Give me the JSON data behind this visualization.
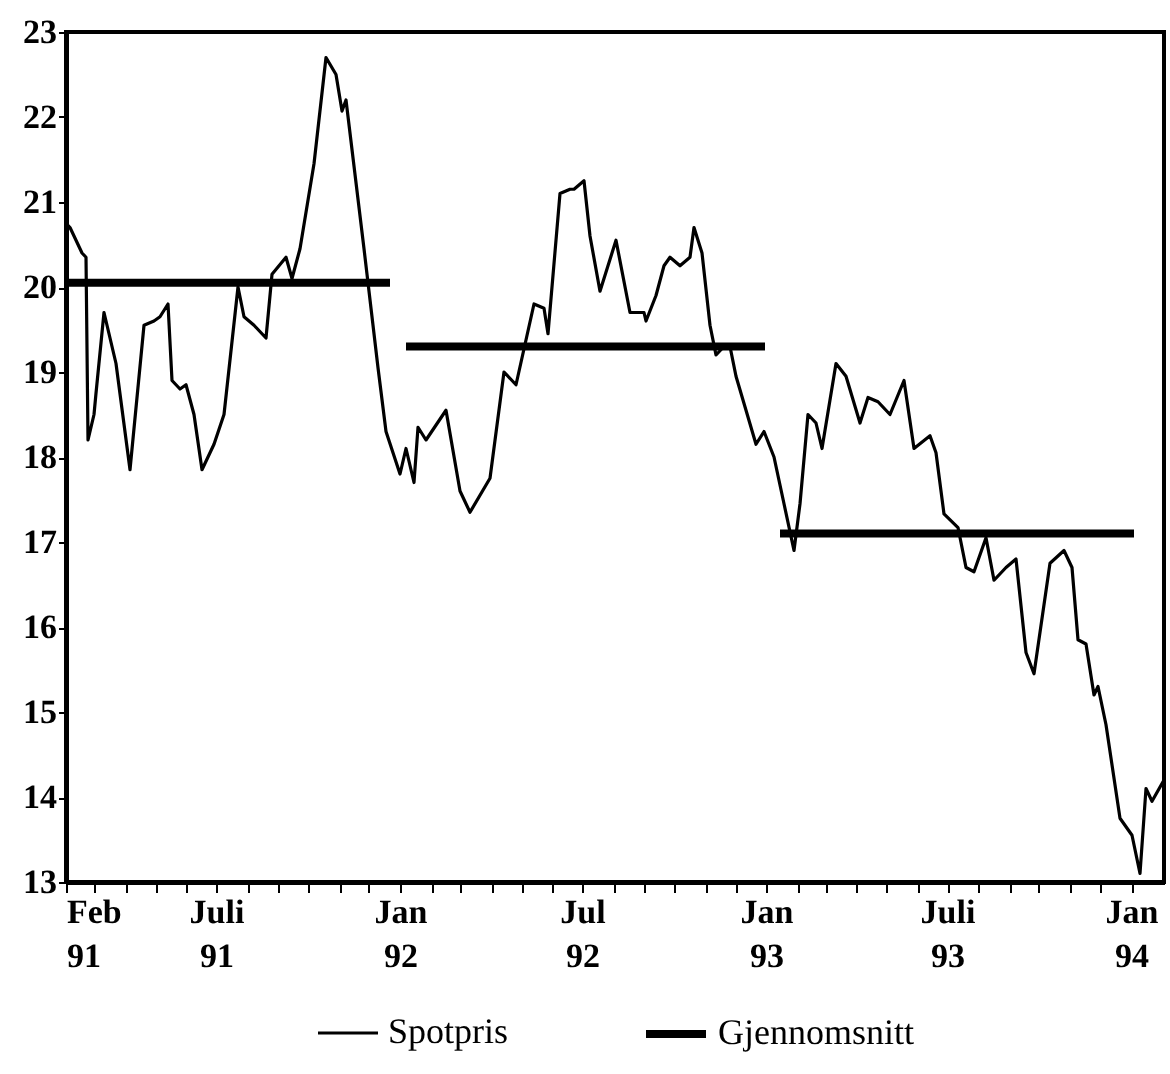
{
  "chart_data": {
    "type": "line",
    "legend": "bottom",
    "xlim": [
      "1991-02-01",
      "1994-02-03"
    ],
    "ylim": [
      13,
      23
    ],
    "yticks": [
      13,
      14,
      15,
      16,
      17,
      18,
      19,
      20,
      21,
      22,
      23
    ],
    "xticks": [
      {
        "value": "1991-02-01",
        "label": "Feb 91"
      },
      {
        "value": "1991-03-01",
        "label": null
      },
      {
        "value": "1991-04-01",
        "label": null
      },
      {
        "value": "1991-05-01",
        "label": null
      },
      {
        "value": "1991-06-01",
        "label": null
      },
      {
        "value": "1991-07-01",
        "label": "Juli 91"
      },
      {
        "value": "1991-08-01",
        "label": null
      },
      {
        "value": "1991-09-01",
        "label": null
      },
      {
        "value": "1991-10-01",
        "label": null
      },
      {
        "value": "1991-11-01",
        "label": null
      },
      {
        "value": "1991-12-01",
        "label": null
      },
      {
        "value": "1992-01-01",
        "label": "Jan 92"
      },
      {
        "value": "1992-02-01",
        "label": null
      },
      {
        "value": "1992-03-01",
        "label": null
      },
      {
        "value": "1992-04-01",
        "label": null
      },
      {
        "value": "1992-05-01",
        "label": null
      },
      {
        "value": "1992-06-01",
        "label": null
      },
      {
        "value": "1992-07-01",
        "label": "Jul 92"
      },
      {
        "value": "1992-08-01",
        "label": null
      },
      {
        "value": "1992-09-01",
        "label": null
      },
      {
        "value": "1992-10-01",
        "label": null
      },
      {
        "value": "1992-11-01",
        "label": null
      },
      {
        "value": "1992-12-01",
        "label": null
      },
      {
        "value": "1993-01-01",
        "label": "Jan 93"
      },
      {
        "value": "1993-02-01",
        "label": null
      },
      {
        "value": "1993-03-01",
        "label": null
      },
      {
        "value": "1993-04-01",
        "label": null
      },
      {
        "value": "1993-05-01",
        "label": null
      },
      {
        "value": "1993-06-01",
        "label": null
      },
      {
        "value": "1993-07-01",
        "label": "Juli 93"
      },
      {
        "value": "1993-08-01",
        "label": null
      },
      {
        "value": "1993-09-01",
        "label": null
      },
      {
        "value": "1993-10-01",
        "label": null
      },
      {
        "value": "1993-11-01",
        "label": null
      },
      {
        "value": "1993-12-01",
        "label": null
      },
      {
        "value": "1994-01-01",
        "label": "Jan 94"
      }
    ],
    "series": [
      {
        "name": "Spotpris",
        "color": "#000000",
        "x": [
          "1991-02-01",
          "1991-02-05",
          "1991-02-17",
          "1991-02-21",
          "1991-02-23",
          "1991-03-01",
          "1991-03-03",
          "1991-03-11",
          "1991-03-23",
          "1991-04-06",
          "1991-04-20",
          "1991-04-30",
          "1991-05-06",
          "1991-05-14",
          "1991-05-18",
          "1991-05-26",
          "1991-06-01",
          "1991-06-09",
          "1991-06-17",
          "1991-06-29",
          "1991-07-09",
          "1991-07-23",
          "1991-07-29",
          "1991-08-08",
          "1991-08-20",
          "1991-08-26",
          "1991-09-09",
          "1991-09-15",
          "1991-09-23",
          "1991-10-07",
          "1991-10-19",
          "1991-10-29",
          "1991-11-04",
          "1991-11-08",
          "1991-11-26",
          "1991-12-10",
          "1991-12-18",
          "1992-01-01",
          "1992-01-07",
          "1992-01-15",
          "1992-01-19",
          "1992-01-27",
          "1992-02-16",
          "1992-03-01",
          "1992-03-11",
          "1992-03-31",
          "1992-04-14",
          "1992-04-26",
          "1992-05-14",
          "1992-05-24",
          "1992-05-28",
          "1992-06-09",
          "1992-06-19",
          "1992-06-23",
          "1992-07-03",
          "1992-07-09",
          "1992-07-19",
          "1992-08-04",
          "1992-08-18",
          "1992-09-01",
          "1992-09-03",
          "1992-09-13",
          "1992-09-21",
          "1992-09-27",
          "1992-10-07",
          "1992-10-17",
          "1992-10-21",
          "1992-10-29",
          "1992-11-06",
          "1992-11-12",
          "1992-11-20",
          "1992-11-26",
          "1992-12-02",
          "1992-12-12",
          "1992-12-22",
          "1992-12-30",
          "1993-01-09",
          "1993-01-19",
          "1993-01-29",
          "1993-02-04",
          "1993-02-12",
          "1993-02-20",
          "1993-02-26",
          "1993-03-12",
          "1993-03-22",
          "1993-04-05",
          "1993-04-13",
          "1993-04-23",
          "1993-05-05",
          "1993-05-19",
          "1993-05-29",
          "1993-06-14",
          "1993-06-20",
          "1993-06-28",
          "1993-07-12",
          "1993-07-20",
          "1993-07-28",
          "1993-08-09",
          "1993-08-17",
          "1993-08-29",
          "1993-09-08",
          "1993-09-18",
          "1993-09-26",
          "1993-10-12",
          "1993-10-26",
          "1993-11-03",
          "1993-11-09",
          "1993-11-17",
          "1993-11-25",
          "1993-11-29",
          "1993-12-07",
          "1993-12-21",
          "1994-01-02",
          "1994-01-10",
          "1994-01-16",
          "1994-01-22",
          "1994-02-03"
        ],
        "values": [
          20.75,
          20.7,
          20.4,
          20.35,
          18.2,
          18.5,
          18.75,
          19.7,
          19.1,
          17.85,
          19.55,
          19.6,
          19.65,
          19.8,
          18.9,
          18.8,
          18.85,
          18.5,
          17.85,
          18.15,
          18.5,
          20.0,
          19.65,
          19.55,
          19.4,
          20.15,
          20.35,
          20.1,
          20.45,
          21.45,
          22.7,
          22.5,
          22.07,
          22.2,
          20.45,
          19.05,
          18.3,
          17.8,
          18.1,
          17.7,
          18.35,
          18.2,
          18.55,
          17.6,
          17.35,
          17.75,
          19.0,
          18.85,
          19.8,
          19.75,
          19.45,
          21.1,
          21.15,
          21.15,
          21.25,
          20.6,
          19.95,
          20.55,
          19.7,
          19.7,
          19.6,
          19.9,
          20.25,
          20.35,
          20.25,
          20.35,
          20.7,
          20.4,
          19.55,
          19.2,
          19.3,
          19.3,
          18.95,
          18.55,
          18.15,
          18.3,
          18.0,
          17.45,
          16.9,
          17.45,
          18.5,
          18.4,
          18.1,
          19.1,
          18.95,
          18.4,
          18.7,
          18.65,
          18.5,
          18.9,
          18.1,
          18.25,
          18.05,
          17.33,
          17.17,
          16.7,
          16.65,
          17.05,
          16.55,
          16.7,
          16.8,
          15.7,
          15.45,
          16.75,
          16.9,
          16.7,
          15.85,
          15.8,
          15.2,
          15.3,
          14.85,
          13.75,
          13.55,
          13.1,
          14.1,
          13.95,
          14.2
        ]
      },
      {
        "name": "Gjennomsnitt",
        "color": "#000000",
        "x": [
          "1991-02-01",
          "1991-12-22",
          "1992-01-01",
          "1992-01-07",
          "1992-12-31",
          "1993-01-08",
          "1993-01-15",
          "1994-01-04"
        ],
        "values": [
          20.05,
          20.05,
          null,
          19.3,
          19.3,
          null,
          17.1,
          17.1
        ]
      }
    ]
  }
}
